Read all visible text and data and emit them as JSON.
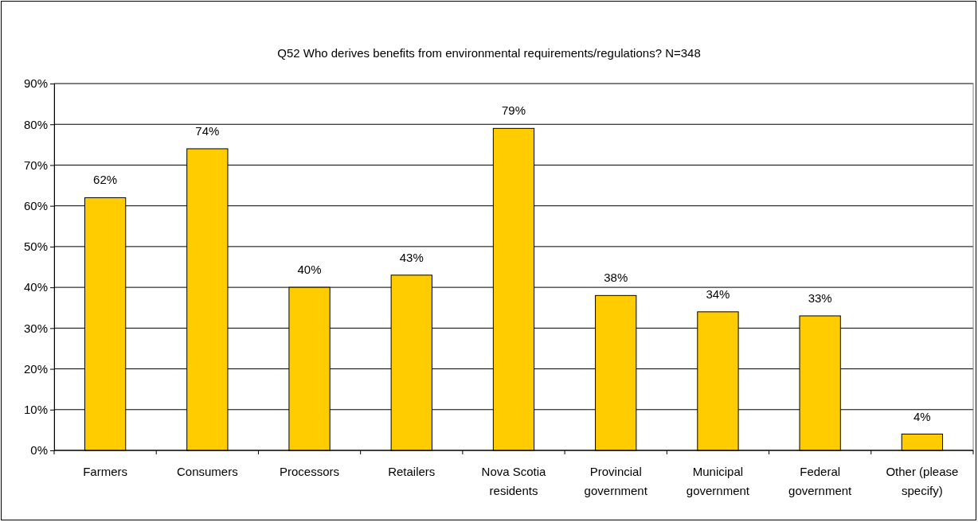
{
  "chart_data": {
    "type": "bar",
    "title": "Q52 Who derives benefits from environmental requirements/regulations? N=348",
    "categories": [
      "Farmers",
      "Consumers",
      "Processors",
      "Retailers",
      "Nova Scotia residents",
      "Provincial government",
      "Municipal government",
      "Federal government",
      "Other (please specify)"
    ],
    "values": [
      62,
      74,
      40,
      43,
      79,
      38,
      34,
      33,
      4
    ],
    "value_labels": [
      "62%",
      "74%",
      "40%",
      "43%",
      "79%",
      "38%",
      "34%",
      "33%",
      "4%"
    ],
    "color": "#ffcc00",
    "grid": "y",
    "ylim": [
      0,
      90
    ],
    "yticks": [
      {
        "value": 0,
        "label": "0%"
      },
      {
        "value": 10,
        "label": "10%"
      },
      {
        "value": 20,
        "label": "20%"
      },
      {
        "value": 30,
        "label": "30%"
      },
      {
        "value": 40,
        "label": "40%"
      },
      {
        "value": 50,
        "label": "50%"
      },
      {
        "value": 60,
        "label": "60%"
      },
      {
        "value": 70,
        "label": "70%"
      },
      {
        "value": 80,
        "label": "80%"
      },
      {
        "value": 90,
        "label": "90%"
      }
    ]
  }
}
